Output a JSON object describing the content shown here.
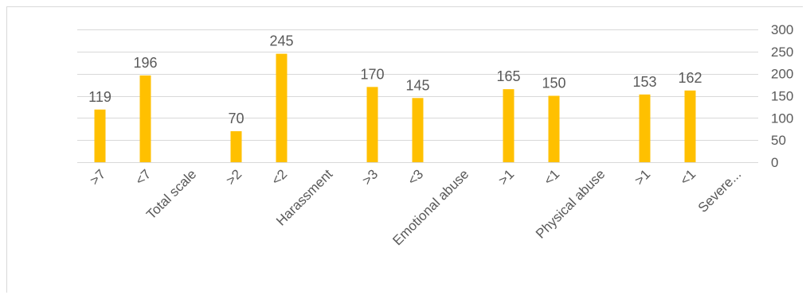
{
  "chart_data": {
    "type": "bar",
    "categories": [
      ">7",
      "<7",
      "Total scale",
      ">2",
      "<2",
      "Harassment",
      ">3",
      "<3",
      "Emotional abuse",
      ">1",
      "<1",
      "Physical abuse",
      ">1",
      "<1",
      "Severe..."
    ],
    "values": [
      119,
      196,
      null,
      70,
      245,
      null,
      170,
      145,
      null,
      165,
      150,
      null,
      153,
      162,
      null
    ],
    "data_labels": [
      "119",
      "196",
      "",
      "70",
      "245",
      "",
      "170",
      "145",
      "",
      "165",
      "150",
      "",
      "153",
      "162",
      ""
    ],
    "ylim": [
      0,
      300
    ],
    "yticks": [
      0,
      50,
      100,
      150,
      200,
      250,
      300
    ],
    "ytick_labels": [
      "0",
      "50",
      "100",
      "150",
      "200",
      "250",
      "300"
    ],
    "y_axis_side": "right",
    "grid": true,
    "legend": "none",
    "bar_color": "#ffc000",
    "grid_color": "#d9d9d9",
    "text_color": "#595959"
  }
}
